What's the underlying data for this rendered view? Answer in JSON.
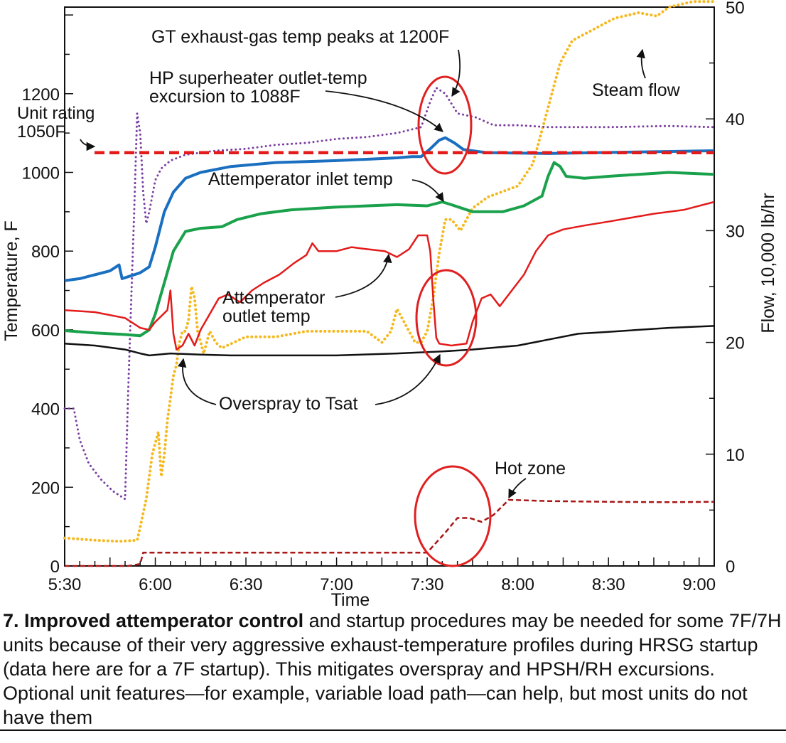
{
  "chart_data": {
    "type": "line",
    "title": "",
    "xlabel": "Time",
    "ylabel_left": "Temperature, F",
    "ylabel_right": "Flow, 10,000 lb/hr",
    "x_ticks": [
      "5:30",
      "6:00",
      "6:30",
      "7:00",
      "7:30",
      "8:00",
      "8:30",
      "9:00"
    ],
    "y_left_ticks": [
      0,
      200,
      400,
      600,
      800,
      1000,
      1200
    ],
    "y_right_ticks": [
      0,
      10,
      20,
      30,
      40,
      50
    ],
    "xlim_minutes_after_5_30": [
      0,
      215
    ],
    "ylim_left": [
      0,
      1420
    ],
    "ylim_right": [
      0,
      50
    ],
    "grid": false,
    "series": [
      {
        "name": "GT exhaust-gas temp",
        "axis": "left",
        "color": "#7a3fa0",
        "style": "dotted",
        "points": [
          [
            0,
            400
          ],
          [
            3,
            400
          ],
          [
            5,
            320
          ],
          [
            8,
            260
          ],
          [
            12,
            220
          ],
          [
            16,
            190
          ],
          [
            20,
            170
          ],
          [
            21,
            440
          ],
          [
            23,
            900
          ],
          [
            24,
            1150
          ],
          [
            25,
            1100
          ],
          [
            26,
            950
          ],
          [
            27,
            870
          ],
          [
            28,
            900
          ],
          [
            29,
            940
          ],
          [
            30,
            980
          ],
          [
            32,
            1010
          ],
          [
            35,
            1030
          ],
          [
            40,
            1045
          ],
          [
            50,
            1055
          ],
          [
            60,
            1060
          ],
          [
            70,
            1070
          ],
          [
            80,
            1075
          ],
          [
            90,
            1085
          ],
          [
            100,
            1090
          ],
          [
            110,
            1100
          ],
          [
            118,
            1115
          ],
          [
            121,
            1180
          ],
          [
            123,
            1215
          ],
          [
            126,
            1200
          ],
          [
            130,
            1150
          ],
          [
            136,
            1140
          ],
          [
            142,
            1120
          ],
          [
            150,
            1120
          ],
          [
            160,
            1115
          ],
          [
            180,
            1115
          ],
          [
            200,
            1118
          ],
          [
            215,
            1115
          ]
        ]
      },
      {
        "name": "HP superheater outlet temp",
        "axis": "left",
        "color": "#1a6fc0",
        "style": "solid",
        "points": [
          [
            0,
            725
          ],
          [
            5,
            730
          ],
          [
            10,
            740
          ],
          [
            15,
            750
          ],
          [
            18,
            765
          ],
          [
            19,
            730
          ],
          [
            21,
            735
          ],
          [
            25,
            745
          ],
          [
            28,
            760
          ],
          [
            30,
            810
          ],
          [
            33,
            900
          ],
          [
            36,
            950
          ],
          [
            40,
            985
          ],
          [
            45,
            1000
          ],
          [
            55,
            1015
          ],
          [
            70,
            1025
          ],
          [
            90,
            1030
          ],
          [
            110,
            1037
          ],
          [
            115,
            1040
          ],
          [
            118,
            1040
          ],
          [
            121,
            1060
          ],
          [
            124,
            1082
          ],
          [
            126,
            1088
          ],
          [
            129,
            1075
          ],
          [
            132,
            1058
          ],
          [
            140,
            1050
          ],
          [
            160,
            1048
          ],
          [
            190,
            1052
          ],
          [
            215,
            1055
          ]
        ]
      },
      {
        "name": "Attemperator inlet temp",
        "axis": "left",
        "color": "#1aa14b",
        "style": "solid",
        "points": [
          [
            0,
            598
          ],
          [
            10,
            592
          ],
          [
            20,
            588
          ],
          [
            25,
            585
          ],
          [
            28,
            600
          ],
          [
            30,
            640
          ],
          [
            33,
            720
          ],
          [
            36,
            800
          ],
          [
            40,
            850
          ],
          [
            45,
            858
          ],
          [
            52,
            862
          ],
          [
            57,
            880
          ],
          [
            65,
            895
          ],
          [
            75,
            905
          ],
          [
            90,
            912
          ],
          [
            110,
            918
          ],
          [
            120,
            915
          ],
          [
            125,
            925
          ],
          [
            128,
            918
          ],
          [
            135,
            900
          ],
          [
            145,
            900
          ],
          [
            152,
            915
          ],
          [
            158,
            940
          ],
          [
            160,
            990
          ],
          [
            162,
            1025
          ],
          [
            164,
            1015
          ],
          [
            166,
            990
          ],
          [
            172,
            985
          ],
          [
            180,
            990
          ],
          [
            190,
            995
          ],
          [
            200,
            1000
          ],
          [
            215,
            995
          ]
        ]
      },
      {
        "name": "Attemperator outlet temp",
        "axis": "left",
        "color": "#e31b1b",
        "style": "solid",
        "points": [
          [
            0,
            650
          ],
          [
            10,
            645
          ],
          [
            20,
            630
          ],
          [
            25,
            605
          ],
          [
            28,
            600
          ],
          [
            30,
            620
          ],
          [
            34,
            650
          ],
          [
            35,
            700
          ],
          [
            36,
            590
          ],
          [
            37,
            550
          ],
          [
            39,
            560
          ],
          [
            41,
            590
          ],
          [
            43,
            560
          ],
          [
            45,
            600
          ],
          [
            48,
            640
          ],
          [
            51,
            680
          ],
          [
            54,
            690
          ],
          [
            58,
            670
          ],
          [
            62,
            700
          ],
          [
            66,
            720
          ],
          [
            71,
            740
          ],
          [
            76,
            770
          ],
          [
            80,
            790
          ],
          [
            82,
            820
          ],
          [
            84,
            800
          ],
          [
            90,
            800
          ],
          [
            95,
            810
          ],
          [
            100,
            805
          ],
          [
            106,
            800
          ],
          [
            110,
            785
          ],
          [
            114,
            805
          ],
          [
            117,
            840
          ],
          [
            120,
            840
          ],
          [
            121,
            800
          ],
          [
            122,
            680
          ],
          [
            123,
            580
          ],
          [
            124,
            565
          ],
          [
            128,
            560
          ],
          [
            133,
            565
          ],
          [
            135,
            620
          ],
          [
            138,
            680
          ],
          [
            141,
            690
          ],
          [
            144,
            660
          ],
          [
            147,
            690
          ],
          [
            152,
            740
          ],
          [
            156,
            800
          ],
          [
            160,
            840
          ],
          [
            165,
            855
          ],
          [
            172,
            865
          ],
          [
            180,
            875
          ],
          [
            195,
            895
          ],
          [
            205,
            905
          ],
          [
            215,
            925
          ]
        ]
      },
      {
        "name": "Tsat",
        "axis": "left",
        "color": "#111111",
        "style": "solid",
        "points": [
          [
            0,
            565
          ],
          [
            10,
            560
          ],
          [
            20,
            550
          ],
          [
            25,
            540
          ],
          [
            28,
            535
          ],
          [
            35,
            540
          ],
          [
            45,
            537
          ],
          [
            55,
            535
          ],
          [
            70,
            535
          ],
          [
            90,
            535
          ],
          [
            110,
            540
          ],
          [
            125,
            545
          ],
          [
            135,
            550
          ],
          [
            150,
            560
          ],
          [
            160,
            575
          ],
          [
            170,
            590
          ],
          [
            180,
            595
          ],
          [
            200,
            605
          ],
          [
            215,
            610
          ]
        ]
      },
      {
        "name": "Steam flow",
        "axis": "right",
        "color": "#f5b920",
        "style": "dotted",
        "points": [
          [
            0,
            2.5
          ],
          [
            10,
            2.3
          ],
          [
            18,
            2.2
          ],
          [
            24,
            2.3
          ],
          [
            25,
            3.5
          ],
          [
            27,
            6
          ],
          [
            29,
            10
          ],
          [
            31,
            12
          ],
          [
            32,
            8
          ],
          [
            33,
            10
          ],
          [
            34,
            13
          ],
          [
            35,
            15
          ],
          [
            36,
            17
          ],
          [
            37,
            18
          ],
          [
            38,
            20
          ],
          [
            39,
            21
          ],
          [
            40,
            21
          ],
          [
            41,
            22
          ],
          [
            42,
            25
          ],
          [
            43,
            24
          ],
          [
            44,
            21
          ],
          [
            46,
            19
          ],
          [
            48,
            21
          ],
          [
            50,
            20
          ],
          [
            52,
            19.5
          ],
          [
            56,
            20
          ],
          [
            60,
            20.5
          ],
          [
            70,
            20.5
          ],
          [
            80,
            21
          ],
          [
            90,
            21
          ],
          [
            100,
            21
          ],
          [
            105,
            20
          ],
          [
            108,
            21
          ],
          [
            110,
            23
          ],
          [
            112,
            22
          ],
          [
            114,
            21
          ],
          [
            116,
            20
          ],
          [
            118,
            20
          ],
          [
            120,
            21
          ],
          [
            122,
            24
          ],
          [
            124,
            28
          ],
          [
            126,
            31
          ],
          [
            128,
            31
          ],
          [
            131,
            30
          ],
          [
            133,
            31
          ],
          [
            135,
            32
          ],
          [
            140,
            33
          ],
          [
            145,
            33.5
          ],
          [
            150,
            34
          ],
          [
            155,
            36
          ],
          [
            158,
            39
          ],
          [
            161,
            42
          ],
          [
            164,
            45
          ],
          [
            168,
            47
          ],
          [
            175,
            48
          ],
          [
            182,
            49
          ],
          [
            190,
            49.5
          ],
          [
            196,
            49.2
          ],
          [
            200,
            50
          ],
          [
            208,
            50.5
          ],
          [
            215,
            50.5
          ]
        ]
      },
      {
        "name": "Hot zone",
        "axis": "left",
        "color": "#a81616",
        "style": "dashed",
        "points": [
          [
            0,
            0
          ],
          [
            15,
            0
          ],
          [
            18,
            0
          ],
          [
            21,
            0
          ],
          [
            25,
            5
          ],
          [
            26,
            34
          ],
          [
            30,
            34
          ],
          [
            50,
            34
          ],
          [
            80,
            34
          ],
          [
            110,
            34
          ],
          [
            120,
            34
          ],
          [
            126,
            85
          ],
          [
            130,
            122
          ],
          [
            134,
            122
          ],
          [
            138,
            112
          ],
          [
            142,
            130
          ],
          [
            147,
            168
          ],
          [
            160,
            165
          ],
          [
            180,
            163
          ],
          [
            200,
            162
          ],
          [
            215,
            163
          ]
        ]
      }
    ],
    "reference_lines": [
      {
        "label": "Unit rating 1050F",
        "value": 1050,
        "axis": "left",
        "color": "#e31b1b",
        "style": "dashed"
      }
    ],
    "annotations": [
      "GT exhaust-gas temp peaks at 1200F",
      "HP superheater outlet-temp excursion to 1088F",
      "Unit rating 1050F",
      "Attemperator inlet temp",
      "Attemperator outlet temp",
      "Overspray to Tsat",
      "Steam flow",
      "Hot zone"
    ],
    "labels": {
      "gt_peak": "GT exhaust-gas temp peaks at 1200F",
      "hp_line1": "HP superheater outlet-temp",
      "hp_line2": "excursion to 1088F",
      "unit_line1": "Unit rating",
      "unit_line2": "1050F",
      "inlet": "Attemperator inlet temp",
      "outlet_line1": "Attemperator",
      "outlet_line2": "outlet temp",
      "overspray": "Overspray to Tsat",
      "steam": "Steam flow",
      "hot": "Hot zone"
    },
    "highlight_color": "#e02020"
  },
  "caption": {
    "bold": "7. Improved attemperator control",
    "rest": " and startup procedures may be needed for some 7F/7H units because of their very aggressive exhaust-temperature profiles during HRSG startup (data here are for a 7F startup). This mitigates overspray and HPSH/RH excursions. Optional unit features—for example, variable load path—can help, but most units do not have them"
  }
}
